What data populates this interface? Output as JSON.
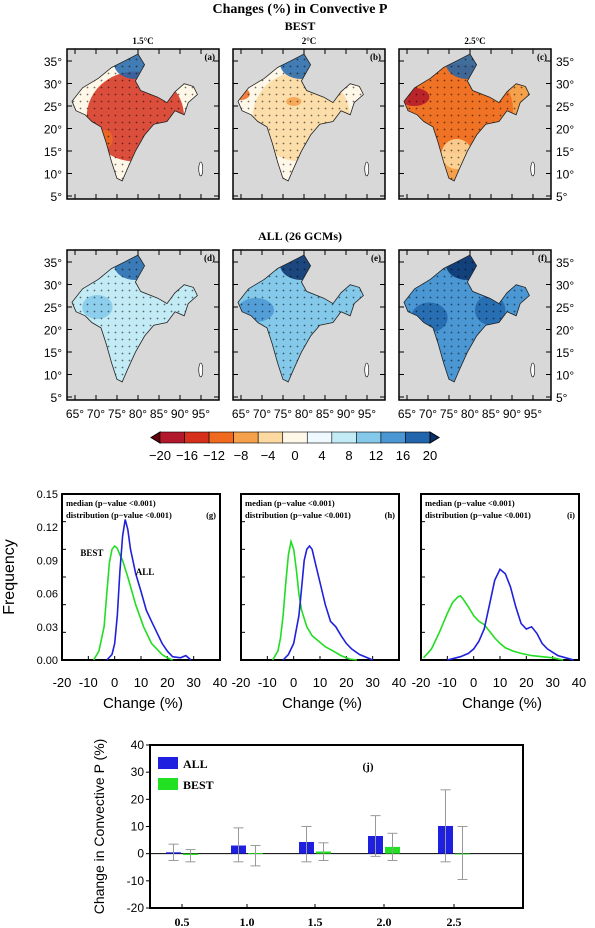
{
  "figure": {
    "title": "Changes (%) in Convective P",
    "best_label": "BEST",
    "all_label": "ALL (26 GCMs)",
    "columns": [
      "1.5°C",
      "2°C",
      "2.5°C"
    ],
    "map_panels_best": [
      "(a)",
      "(b)",
      "(c)"
    ],
    "map_panels_all": [
      "(d)",
      "(e)",
      "(f)"
    ],
    "lat_labels": [
      "35°",
      "30°",
      "25°",
      "20°",
      "15°",
      "10°",
      "5°"
    ],
    "lon_labels": [
      "65°",
      "70°",
      "75°",
      "80°",
      "85°",
      "90°",
      "95°"
    ]
  },
  "colorbar": {
    "labels": [
      "−20",
      "−16",
      "−12",
      "−8",
      "−4",
      "0",
      "4",
      "8",
      "12",
      "16",
      "20"
    ],
    "colors": [
      "#67000d",
      "#b2182b",
      "#d6301d",
      "#ef6a1f",
      "#f5a04a",
      "#fcd9a0",
      "#fff7e8",
      "#eefaff",
      "#c3ebf5",
      "#84c9ea",
      "#4a97d4",
      "#2166ac",
      "#08306b"
    ]
  },
  "chart_data": [
    {
      "type": "line",
      "panel": "(g)",
      "annotation_1": "median (p−value <0.001)",
      "annotation_2": "distribution (p−value <0.001)",
      "xlabel": "Change (%)",
      "ylabel": "Frequency",
      "xlim": [
        -20,
        40
      ],
      "ylim": [
        0,
        0.15
      ],
      "xticks": [
        -20,
        -10,
        0,
        10,
        20,
        30,
        40
      ],
      "yticks": [
        "0.00",
        "0.03",
        "0.06",
        "0.09",
        "0.12",
        "0.15"
      ],
      "series": [
        {
          "name": "BEST",
          "color": "#22dd22",
          "x": [
            -8,
            -6,
            -4,
            -3,
            -2,
            -1,
            0,
            1,
            2,
            3,
            5,
            8,
            11,
            14,
            16,
            18,
            20,
            22
          ],
          "y": [
            0,
            0.008,
            0.03,
            0.06,
            0.088,
            0.1,
            0.103,
            0.101,
            0.095,
            0.09,
            0.075,
            0.05,
            0.03,
            0.015,
            0.01,
            0.005,
            0.002,
            0
          ]
        },
        {
          "name": "ALL",
          "color": "#2020dd",
          "x": [
            -3,
            -1,
            0,
            1,
            2,
            3,
            4,
            5,
            6,
            8,
            10,
            12,
            14,
            16,
            18,
            20,
            22,
            25,
            27,
            29
          ],
          "y": [
            0,
            0.005,
            0.015,
            0.04,
            0.08,
            0.112,
            0.127,
            0.118,
            0.1,
            0.078,
            0.062,
            0.045,
            0.035,
            0.025,
            0.015,
            0.008,
            0.003,
            0.002,
            0.004,
            0
          ]
        }
      ]
    },
    {
      "type": "line",
      "panel": "(h)",
      "annotation_1": "median (p−value <0.001)",
      "annotation_2": "distribution (p−value <0.001)",
      "xlabel": "Change (%)",
      "xlim": [
        -20,
        40
      ],
      "ylim": [
        0,
        0.15
      ],
      "xticks": [
        -20,
        -10,
        0,
        10,
        20,
        30,
        40
      ],
      "series": [
        {
          "name": "BEST",
          "color": "#22dd22",
          "x": [
            -8,
            -6,
            -5,
            -4,
            -3,
            -2,
            -1,
            0,
            1,
            2,
            3,
            5,
            7,
            9,
            12,
            15,
            18,
            21,
            24
          ],
          "y": [
            0,
            0.008,
            0.02,
            0.04,
            0.07,
            0.095,
            0.107,
            0.1,
            0.082,
            0.06,
            0.045,
            0.03,
            0.022,
            0.018,
            0.012,
            0.008,
            0.004,
            0.001,
            0
          ]
        },
        {
          "name": "ALL",
          "color": "#2020dd",
          "x": [
            -4,
            -2,
            0,
            2,
            3,
            4,
            5,
            6,
            7,
            8,
            10,
            12,
            14,
            16,
            18,
            20,
            22,
            25,
            28,
            30
          ],
          "y": [
            0,
            0.005,
            0.015,
            0.04,
            0.065,
            0.09,
            0.1,
            0.103,
            0.1,
            0.09,
            0.07,
            0.05,
            0.035,
            0.03,
            0.022,
            0.015,
            0.01,
            0.005,
            0.002,
            0
          ]
        }
      ]
    },
    {
      "type": "line",
      "panel": "(i)",
      "annotation_1": "median (p−value <0.001)",
      "annotation_2": "distribution (p−value <0.001)",
      "xlabel": "Change (%)",
      "xlim": [
        -20,
        40
      ],
      "ylim": [
        0,
        0.15
      ],
      "xticks": [
        -20,
        -10,
        0,
        10,
        20,
        30,
        40
      ],
      "series": [
        {
          "name": "BEST",
          "color": "#22dd22",
          "x": [
            -19,
            -16,
            -13,
            -10,
            -8,
            -6,
            -5,
            -4,
            -2,
            0,
            2,
            4,
            6,
            8,
            10,
            12,
            15,
            18,
            22,
            26,
            30,
            34
          ],
          "y": [
            0.002,
            0.01,
            0.025,
            0.042,
            0.052,
            0.057,
            0.058,
            0.055,
            0.048,
            0.04,
            0.035,
            0.032,
            0.026,
            0.02,
            0.015,
            0.011,
            0.008,
            0.006,
            0.004,
            0.003,
            0.002,
            0
          ]
        },
        {
          "name": "ALL",
          "color": "#2020dd",
          "x": [
            -10,
            -5,
            -2,
            0,
            2,
            4,
            6,
            8,
            10,
            12,
            14,
            16,
            18,
            20,
            22,
            24,
            26,
            28,
            30,
            32,
            35,
            38
          ],
          "y": [
            0,
            0.003,
            0.006,
            0.01,
            0.017,
            0.028,
            0.05,
            0.072,
            0.082,
            0.078,
            0.066,
            0.048,
            0.033,
            0.028,
            0.03,
            0.024,
            0.015,
            0.01,
            0.007,
            0.004,
            0.002,
            0
          ]
        }
      ]
    },
    {
      "type": "bar",
      "panel": "(j)",
      "ylabel": "Change in Convective P (%)",
      "ylim": [
        -20,
        40
      ],
      "yticks": [
        -20,
        -10,
        0,
        10,
        20,
        30,
        40
      ],
      "categories": [
        "0.5",
        "1.0",
        "1.5",
        "2.0",
        "2.5"
      ],
      "series": [
        {
          "name": "ALL",
          "color": "#1f1fe0",
          "values": [
            0.5,
            3.0,
            4.3,
            6.5,
            10.2
          ],
          "err_low": [
            -2.5,
            -3.0,
            -3.0,
            -1.0,
            -3.0
          ],
          "err_high": [
            3.5,
            9.5,
            10.0,
            14.0,
            23.5
          ]
        },
        {
          "name": "BEST",
          "color": "#22e022",
          "values": [
            -0.5,
            0.2,
            0.8,
            2.5,
            0.0
          ],
          "err_low": [
            -3.0,
            -4.5,
            -2.5,
            -2.5,
            -9.5
          ],
          "err_high": [
            1.5,
            3.0,
            4.0,
            7.5,
            10.0
          ]
        }
      ]
    }
  ]
}
